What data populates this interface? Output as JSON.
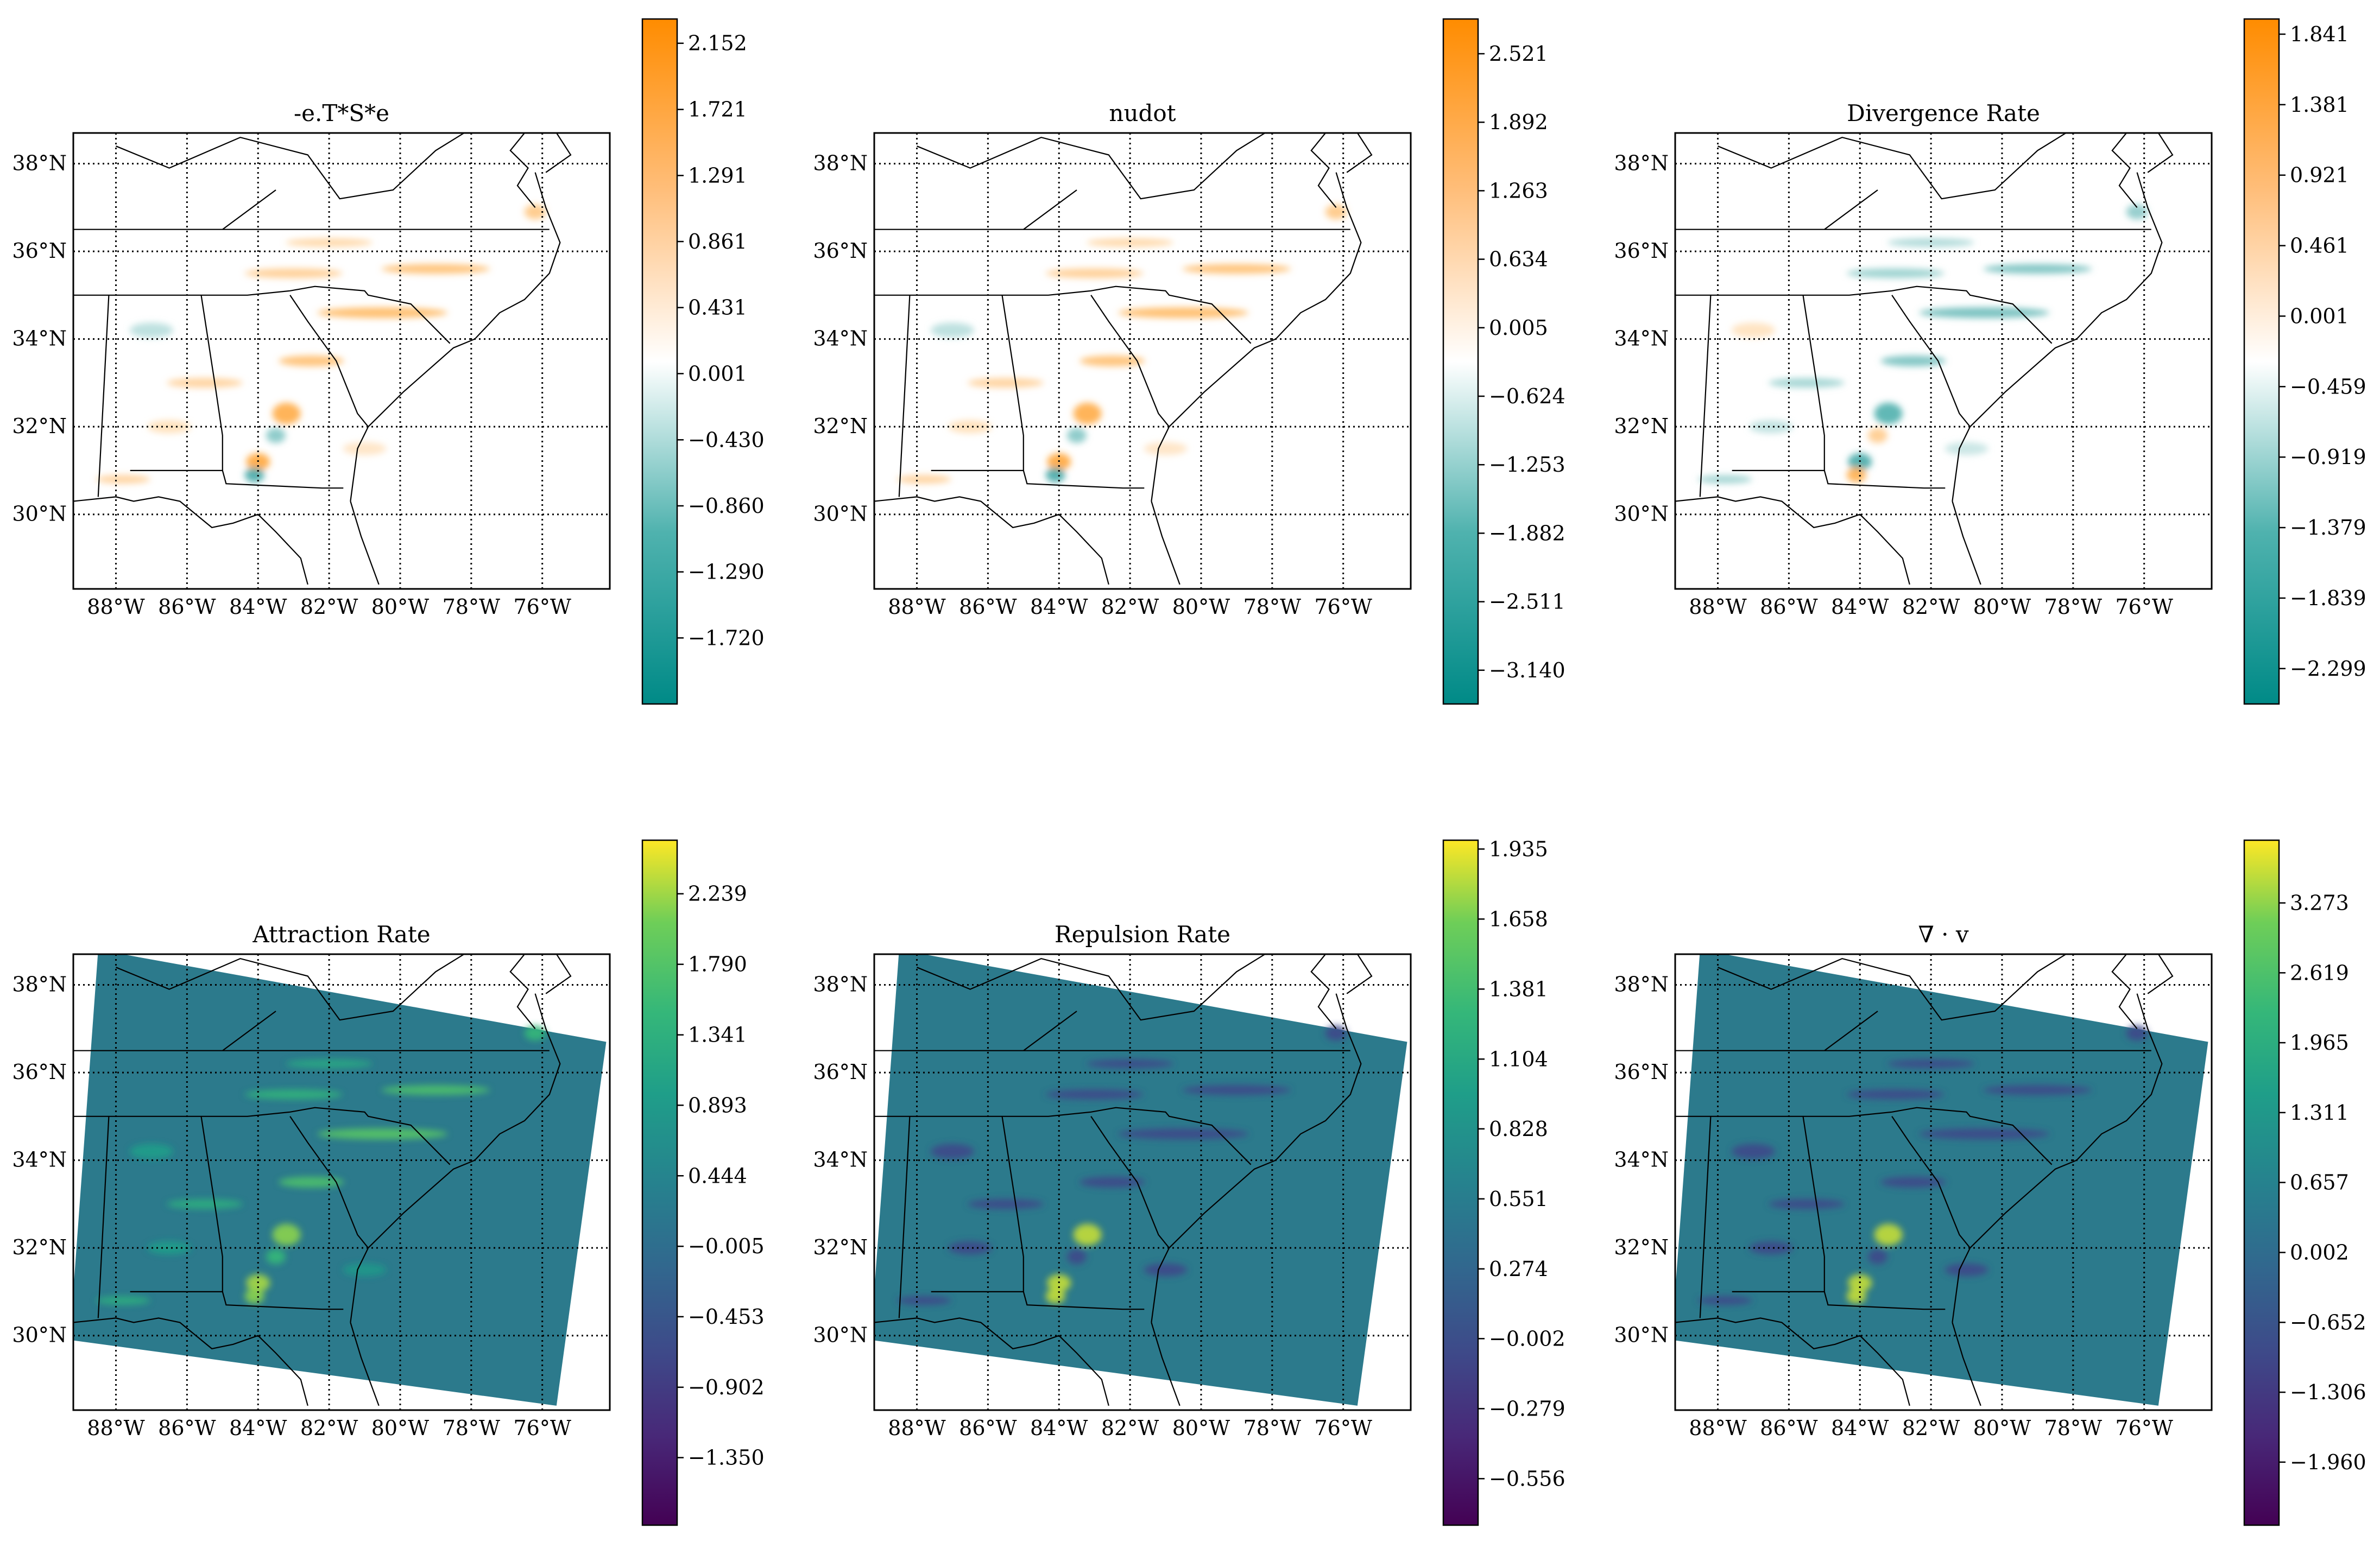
{
  "chart_data": [
    {
      "type": "heatmap",
      "title": "-e.T*S*e",
      "colormap": "teal-white-orange",
      "colorbar_ticks": [
        "2.152",
        "1.721",
        "1.291",
        "0.861",
        "0.431",
        "0.001",
        "−0.430",
        "−0.860",
        "−1.290",
        "−1.720"
      ],
      "colorbar_range": [
        -2.15,
        2.31
      ],
      "lon_ticks": [
        "88°W",
        "86°W",
        "84°W",
        "82°W",
        "80°W",
        "78°W",
        "76°W"
      ],
      "lat_ticks": [
        "38°N",
        "36°N",
        "34°N",
        "32°N",
        "30°N"
      ],
      "grid": true
    },
    {
      "type": "heatmap",
      "title": "nudot",
      "colormap": "teal-white-orange",
      "colorbar_ticks": [
        "2.521",
        "1.892",
        "1.263",
        "0.634",
        "0.005",
        "−0.624",
        "−1.253",
        "−1.882",
        "−2.511",
        "−3.140"
      ],
      "colorbar_range": [
        -3.45,
        2.84
      ],
      "lon_ticks": [
        "88°W",
        "86°W",
        "84°W",
        "82°W",
        "80°W",
        "78°W",
        "76°W"
      ],
      "lat_ticks": [
        "38°N",
        "36°N",
        "34°N",
        "32°N",
        "30°N"
      ],
      "grid": true
    },
    {
      "type": "heatmap",
      "title": "Divergence Rate",
      "colormap": "teal-white-orange",
      "colorbar_ticks": [
        "1.841",
        "1.381",
        "0.921",
        "0.461",
        "0.001",
        "−0.459",
        "−0.919",
        "−1.379",
        "−1.839",
        "−2.299"
      ],
      "colorbar_range": [
        -2.53,
        1.94
      ],
      "lon_ticks": [
        "88°W",
        "86°W",
        "84°W",
        "82°W",
        "80°W",
        "78°W",
        "76°W"
      ],
      "lat_ticks": [
        "38°N",
        "36°N",
        "34°N",
        "32°N",
        "30°N"
      ],
      "grid": true
    },
    {
      "type": "heatmap",
      "title": "Attraction Rate",
      "colormap": "viridis",
      "colorbar_ticks": [
        "2.239",
        "1.790",
        "1.341",
        "0.893",
        "0.444",
        "−0.005",
        "−0.453",
        "−0.902",
        "−1.350"
      ],
      "colorbar_range": [
        -1.78,
        2.58
      ],
      "lon_ticks": [
        "88°W",
        "86°W",
        "84°W",
        "82°W",
        "80°W",
        "78°W",
        "76°W"
      ],
      "lat_ticks": [
        "38°N",
        "36°N",
        "34°N",
        "32°N",
        "30°N"
      ],
      "grid": true
    },
    {
      "type": "heatmap",
      "title": "Repulsion Rate",
      "colormap": "viridis",
      "colorbar_ticks": [
        "1.935",
        "1.658",
        "1.381",
        "1.104",
        "0.828",
        "0.551",
        "0.274",
        "−0.002",
        "−0.279",
        "−0.556"
      ],
      "colorbar_range": [
        -0.74,
        1.97
      ],
      "lon_ticks": [
        "88°W",
        "86°W",
        "84°W",
        "82°W",
        "80°W",
        "78°W",
        "76°W"
      ],
      "lat_ticks": [
        "38°N",
        "36°N",
        "34°N",
        "32°N",
        "30°N"
      ],
      "grid": true
    },
    {
      "type": "heatmap",
      "title": "∇ · v",
      "colormap": "viridis",
      "colorbar_ticks": [
        "3.273",
        "2.619",
        "1.965",
        "1.311",
        "0.657",
        "0.002",
        "−0.652",
        "−1.306",
        "−1.960"
      ],
      "colorbar_range": [
        -2.55,
        3.86
      ],
      "lon_ticks": [
        "88°W",
        "86°W",
        "84°W",
        "82°W",
        "80°W",
        "78°W",
        "76°W"
      ],
      "lat_ticks": [
        "38°N",
        "36°N",
        "34°N",
        "32°N",
        "30°N"
      ],
      "grid": true
    }
  ],
  "colors": {
    "diverging_low": "#008a87",
    "diverging_mid": "#ffffff",
    "diverging_high": "#ff8c00",
    "viridis_low": "#440154",
    "viridis_high": "#fde725",
    "field_background_viridis": "#2c7a8c"
  }
}
